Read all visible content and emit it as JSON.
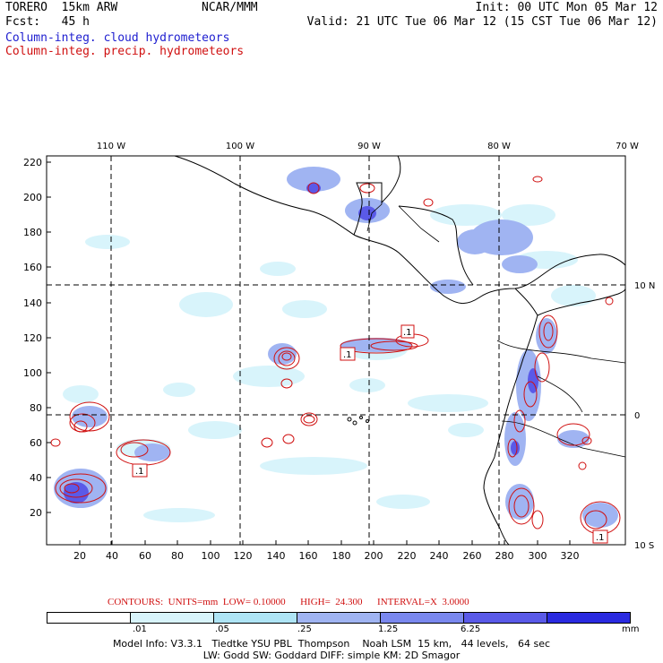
{
  "header": {
    "model": "TORERO  15km ARW",
    "org": "NCAR/MMM",
    "init": "Init: 00 UTC Mon 05 Mar 12",
    "fcst": "Fcst:   45 h",
    "valid": "Valid: 21 UTC Tue 06 Mar 12 (15 CST Tue 06 Mar 12)"
  },
  "legend": {
    "cloud": "Column-integ. cloud hydrometeors",
    "precip": "Column-integ. precip. hydrometeors"
  },
  "map": {
    "lon_labels": [
      "110 W",
      "100 W",
      "90 W",
      "80 W",
      "70 W"
    ],
    "lat_labels": [
      "10 N",
      "0",
      "10 S"
    ],
    "y_ticks": [
      "220",
      "200",
      "180",
      "160",
      "140",
      "120",
      "100",
      "80",
      "60",
      "40",
      "20"
    ],
    "x_ticks": [
      "20",
      "40",
      "60",
      "80",
      "100",
      "120",
      "140",
      "160",
      "180",
      "200",
      "220",
      "240",
      "260",
      "280",
      "300",
      "320"
    ],
    "contour_labels": [
      ".1",
      ".1",
      ".1",
      ".1"
    ]
  },
  "contours": {
    "text": "CONTOURS:  UNITS=mm  LOW= 0.10000      HIGH=  24.300      INTERVAL=X  3.0000",
    "units": "mm",
    "low": 0.1,
    "high": 24.3,
    "interval": 3.0
  },
  "colorbar": {
    "colors": [
      "#ffffff",
      "#d8f4fb",
      "#aee4f5",
      "#a0b4f2",
      "#7a88ee",
      "#5a5ae8",
      "#2a2ae0"
    ],
    "labels": [
      ".01",
      ".05",
      ".25",
      "1.25",
      "6.25"
    ],
    "unit": "mm"
  },
  "footer": {
    "line1": "Model Info: V3.3.1   Tiedtke YSU PBL  Thompson    Noah LSM  15 km,   44 levels,   64 sec",
    "line2": "LW: Godd SW: Goddard DIFF: simple KM: 2D Smagor"
  }
}
